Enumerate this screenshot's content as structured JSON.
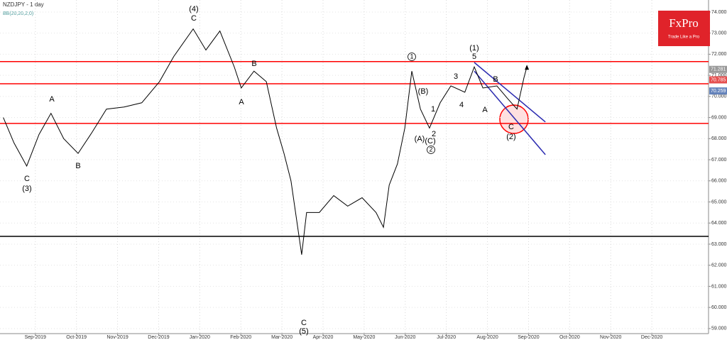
{
  "chart_data": {
    "type": "line",
    "title": "NZDJPY - 1 day",
    "subtitle": "BB(20,20,2,0)",
    "brand": {
      "name": "FxPro",
      "tagline": "Trade Like a Pro",
      "color": "#e0232a"
    },
    "xlim": [
      -0.86,
      16.38
    ],
    "xticks": [
      {
        "value": 0,
        "label": "Sep-2019"
      },
      {
        "value": 1,
        "label": "Oct-2019"
      },
      {
        "value": 2,
        "label": "Nov-2019"
      },
      {
        "value": 3,
        "label": "Dec-2019"
      },
      {
        "value": 4,
        "label": "Jan-2020"
      },
      {
        "value": 5,
        "label": "Feb-2020"
      },
      {
        "value": 6,
        "label": "Mar-2020"
      },
      {
        "value": 7,
        "label": "Apr-2020"
      },
      {
        "value": 8,
        "label": "May-2020"
      },
      {
        "value": 9,
        "label": "Jun-2020"
      },
      {
        "value": 10,
        "label": "Jul-2020"
      },
      {
        "value": 11,
        "label": "Aug-2020"
      },
      {
        "value": 12,
        "label": "Sep-2020"
      },
      {
        "value": 13,
        "label": "Oct-2020"
      },
      {
        "value": 14,
        "label": "Nov-2020"
      },
      {
        "value": 15,
        "label": "Dec-2020"
      }
    ],
    "ylim": [
      58.76,
      74.57
    ],
    "yticks": [
      {
        "value": 59,
        "label": "59.000"
      },
      {
        "value": 60,
        "label": "60.000"
      },
      {
        "value": 61,
        "label": "61.000"
      },
      {
        "value": 62,
        "label": "62.000"
      },
      {
        "value": 63,
        "label": "63.000"
      },
      {
        "value": 64,
        "label": "64.000"
      },
      {
        "value": 65,
        "label": "65.000"
      },
      {
        "value": 66,
        "label": "66.000"
      },
      {
        "value": 67,
        "label": "67.000"
      },
      {
        "value": 68,
        "label": "68.000"
      },
      {
        "value": 69,
        "label": "69.000"
      },
      {
        "value": 70,
        "label": "70.000"
      },
      {
        "value": 71,
        "label": "71.000"
      },
      {
        "value": 72,
        "label": "72.000"
      },
      {
        "value": 73,
        "label": "73.000"
      },
      {
        "value": 74,
        "label": "74.000"
      }
    ],
    "grid": true,
    "series": [
      {
        "name": "NZDJPY",
        "color": "#000000",
        "x": [
          -0.78,
          -0.52,
          -0.21,
          0.09,
          0.38,
          0.69,
          1.04,
          1.38,
          1.73,
          2.16,
          2.59,
          3.02,
          3.37,
          3.84,
          4.15,
          4.49,
          4.84,
          5.01,
          5.32,
          5.62,
          5.87,
          6.05,
          6.22,
          6.48,
          6.6,
          6.91,
          7.26,
          7.6,
          7.95,
          8.29,
          8.47,
          8.61,
          8.81,
          8.99,
          9.16,
          9.37,
          9.59,
          9.85,
          10.11,
          10.45,
          10.68,
          10.89,
          11.23,
          11.49,
          11.72,
          11.89,
          11.96
        ],
        "values": [
          69.0,
          67.8,
          66.7,
          68.2,
          69.2,
          68.0,
          67.3,
          68.3,
          69.4,
          69.5,
          69.7,
          70.7,
          71.9,
          73.2,
          72.2,
          73.1,
          71.4,
          70.4,
          71.2,
          70.7,
          68.5,
          67.3,
          66.0,
          62.5,
          64.5,
          64.5,
          65.3,
          64.8,
          65.2,
          64.5,
          63.8,
          65.8,
          66.8,
          68.5,
          71.2,
          69.4,
          68.5,
          69.7,
          70.5,
          70.2,
          71.4,
          70.4,
          70.5,
          69.9,
          69.4,
          70.9,
          71.4
        ]
      }
    ],
    "levels": [
      {
        "value": 71.65,
        "color": "#ff0000"
      },
      {
        "value": 70.6,
        "color": "#ff0000"
      },
      {
        "value": 68.72,
        "color": "#ff0000"
      },
      {
        "value": 63.37,
        "color": "#000000"
      }
    ],
    "channel": [
      {
        "x": [
          10.68,
          12.41
        ],
        "y": [
          71.61,
          68.79
        ],
        "color": "#2b2bb0"
      },
      {
        "x": [
          10.68,
          12.41
        ],
        "y": [
          71.2,
          67.24
        ],
        "color": "#2b2bb0"
      }
    ],
    "price_tags": [
      {
        "value": 71.281,
        "label": "71.281",
        "color": "#888888"
      },
      {
        "value": 70.785,
        "label": "70.785",
        "color": "#e03030"
      },
      {
        "value": 70.259,
        "label": "70.259",
        "color": "#4a6fb0"
      }
    ],
    "annotations": [
      {
        "text": "(4)"
      },
      {
        "text": "C"
      },
      {
        "text": "A"
      },
      {
        "text": "B"
      },
      {
        "text": "C"
      },
      {
        "text": "(3)"
      },
      {
        "text": "B"
      },
      {
        "text": "A"
      },
      {
        "text": "C"
      },
      {
        "text": "(5)"
      },
      {
        "text": "1",
        "circled": true
      },
      {
        "text": "(B)"
      },
      {
        "text": "1"
      },
      {
        "text": "2"
      },
      {
        "text": "(A)"
      },
      {
        "text": "(C)"
      },
      {
        "text": "2",
        "circled": true
      },
      {
        "text": "(1)"
      },
      {
        "text": "5"
      },
      {
        "text": "3"
      },
      {
        "text": "B"
      },
      {
        "text": "4"
      },
      {
        "text": "A"
      },
      {
        "text": "C"
      },
      {
        "text": "(2)"
      }
    ]
  }
}
